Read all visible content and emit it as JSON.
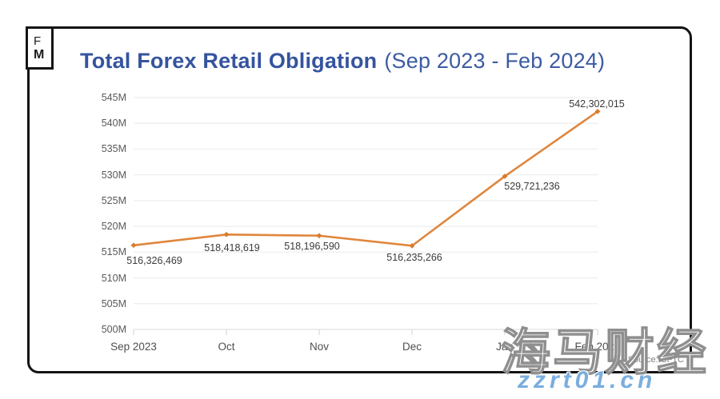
{
  "logo": {
    "line1": "F",
    "line2": "M"
  },
  "title": {
    "main": "Total Forex Retail Obligation",
    "range": "(Sep 2023 - Feb 2024)"
  },
  "source": "Source: CFTC",
  "watermark": {
    "cjk": "海马财经",
    "url": "zzrt01.cn"
  },
  "colors": {
    "line": "#e0863c",
    "marker": "#d87c2e",
    "grid": "#ededed",
    "axis": "#e0e0e0",
    "tick": "#d8d8d8",
    "title_blue": "#35549e",
    "watermark_blue": "#7aaede"
  },
  "chart_data": {
    "type": "line",
    "title": "Total Forex Retail Obligation (Sep 2023 - Feb 2024)",
    "x": [
      "Sep 2023",
      "Oct",
      "Nov",
      "Dec",
      "Jan",
      "Feb 2024"
    ],
    "values": [
      516326469,
      518418619,
      518196590,
      516235266,
      529721236,
      542302015
    ],
    "point_labels": [
      "516,326,469",
      "518,418,619",
      "518,196,590",
      "516,235,266",
      "529,721,236",
      "542,302,015"
    ],
    "y_ticks": [
      {
        "label": "545M",
        "value": 545000000
      },
      {
        "label": "540M",
        "value": 540000000
      },
      {
        "label": "535M",
        "value": 535000000
      },
      {
        "label": "530M",
        "value": 530000000
      },
      {
        "label": "525M",
        "value": 525000000
      },
      {
        "label": "520M",
        "value": 520000000
      },
      {
        "label": "515M",
        "value": 515000000
      },
      {
        "label": "510M",
        "value": 510000000
      },
      {
        "label": "505M",
        "value": 505000000
      },
      {
        "label": "500M",
        "value": 500000000
      }
    ],
    "ylim": [
      500000000,
      545000000
    ],
    "xlabel": "",
    "ylabel": "",
    "grid": "horizontal",
    "legend": "none"
  }
}
